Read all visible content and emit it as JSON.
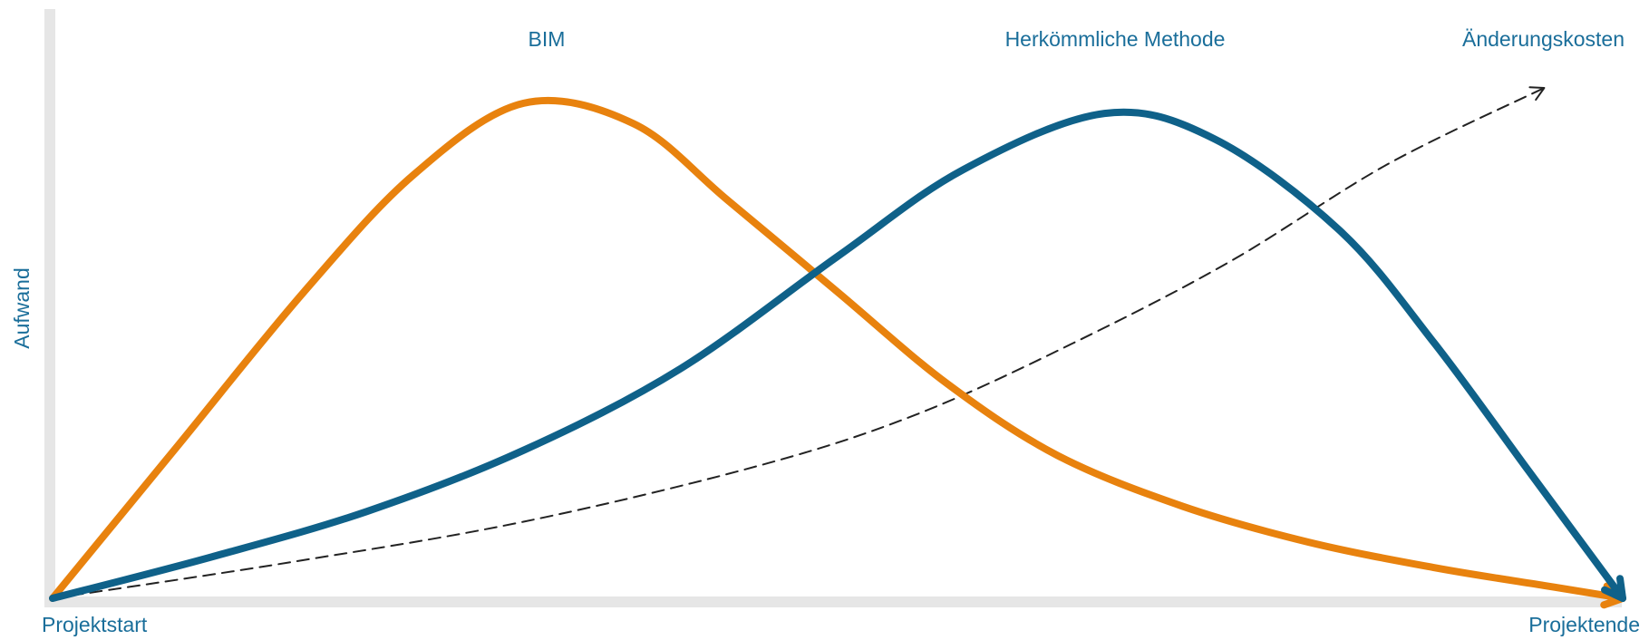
{
  "chart_data": {
    "type": "line",
    "title": "",
    "xlabel": "",
    "ylabel": "Aufwand",
    "x_tick_labels": [
      "Projektstart",
      "Projektende"
    ],
    "xlim": [
      0,
      1
    ],
    "ylim": [
      0,
      1
    ],
    "grid": false,
    "legend": "none",
    "series": [
      {
        "name": "BIM",
        "color": "#e8820e",
        "style": "solid",
        "x": [
          0.0,
          0.08,
          0.16,
          0.23,
          0.3,
          0.37,
          0.43,
          0.5,
          0.57,
          0.64,
          0.72,
          0.8,
          0.88,
          0.95,
          1.0
        ],
        "y": [
          0.0,
          0.3,
          0.6,
          0.83,
          0.97,
          0.93,
          0.78,
          0.6,
          0.42,
          0.28,
          0.18,
          0.11,
          0.06,
          0.025,
          0.0
        ]
      },
      {
        "name": "Herkömmliche Methode",
        "color": "#0f6189",
        "style": "solid",
        "x": [
          0.0,
          0.1,
          0.2,
          0.3,
          0.4,
          0.5,
          0.58,
          0.67,
          0.74,
          0.82,
          0.88,
          0.94,
          1.0
        ],
        "y": [
          0.0,
          0.08,
          0.17,
          0.29,
          0.45,
          0.67,
          0.84,
          0.95,
          0.9,
          0.72,
          0.5,
          0.25,
          0.0
        ]
      },
      {
        "name": "Änderungskosten",
        "color": "#222222",
        "style": "dashed",
        "x": [
          0.0,
          0.15,
          0.3,
          0.45,
          0.55,
          0.65,
          0.75,
          0.85,
          0.95
        ],
        "y": [
          0.0,
          0.07,
          0.15,
          0.26,
          0.36,
          0.5,
          0.66,
          0.85,
          1.0
        ]
      }
    ]
  }
}
